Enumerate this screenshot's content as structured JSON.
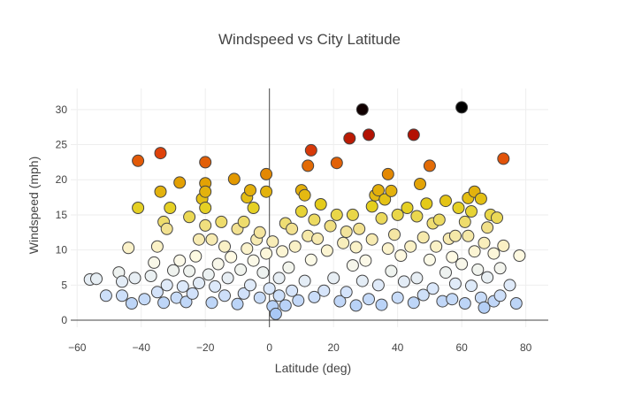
{
  "chart_data": {
    "type": "scatter",
    "title": "Windspeed vs City Latitude",
    "xlabel": "Latitude (deg)",
    "ylabel": "Windspeed (mph)",
    "xlim": [
      -62,
      87
    ],
    "ylim": [
      -1,
      33
    ],
    "xticks": [
      -60,
      -40,
      -20,
      0,
      20,
      40,
      60,
      80
    ],
    "yticks": [
      0,
      5,
      10,
      15,
      20,
      25,
      30
    ],
    "grid": true,
    "zeroline_x": true,
    "zeroline_y": true,
    "marker": {
      "edge_color": "#444444"
    },
    "colorscale": [
      [
        0.0,
        "#a9c8f5"
      ],
      [
        0.12,
        "#dbe8fb"
      ],
      [
        0.27,
        "#fffbe6"
      ],
      [
        0.4,
        "#f3e39a"
      ],
      [
        0.52,
        "#e4cf1c"
      ],
      [
        0.65,
        "#e39a00"
      ],
      [
        0.77,
        "#e2450b"
      ],
      [
        0.9,
        "#a30000"
      ],
      [
        1.0,
        "#000000"
      ]
    ],
    "points": [
      [
        -56,
        5.8
      ],
      [
        -54,
        5.9
      ],
      [
        -51,
        3.5
      ],
      [
        -47,
        6.8
      ],
      [
        -46,
        5.5
      ],
      [
        -46,
        3.5
      ],
      [
        -44,
        10.3
      ],
      [
        -43,
        2.4
      ],
      [
        -42,
        6.0
      ],
      [
        -41,
        16.0
      ],
      [
        -41,
        22.7
      ],
      [
        -39,
        3.0
      ],
      [
        -37,
        6.3
      ],
      [
        -36,
        8.2
      ],
      [
        -35,
        10.5
      ],
      [
        -35,
        4.0
      ],
      [
        -34,
        18.3
      ],
      [
        -34,
        23.8
      ],
      [
        -33,
        14.0
      ],
      [
        -33,
        2.5
      ],
      [
        -32,
        13.0
      ],
      [
        -32,
        5.0
      ],
      [
        -31,
        16.0
      ],
      [
        -30,
        7.1
      ],
      [
        -29,
        3.2
      ],
      [
        -28,
        19.6
      ],
      [
        -28,
        8.5
      ],
      [
        -27,
        4.8
      ],
      [
        -26,
        2.6
      ],
      [
        -25,
        7.0
      ],
      [
        -25,
        14.7
      ],
      [
        -24,
        3.8
      ],
      [
        -23,
        9.1
      ],
      [
        -22,
        11.5
      ],
      [
        -22,
        5.3
      ],
      [
        -21,
        17.3
      ],
      [
        -20,
        19.5
      ],
      [
        -20,
        18.3
      ],
      [
        -20,
        16.0
      ],
      [
        -20,
        22.5
      ],
      [
        -20,
        13.5
      ],
      [
        -19,
        6.5
      ],
      [
        -18,
        11.5
      ],
      [
        -18,
        2.5
      ],
      [
        -17,
        4.8
      ],
      [
        -16,
        8.0
      ],
      [
        -15,
        14.0
      ],
      [
        -14,
        10.5
      ],
      [
        -14,
        3.5
      ],
      [
        -13,
        6.0
      ],
      [
        -12,
        9.0
      ],
      [
        -11,
        20.1
      ],
      [
        -10,
        13.0
      ],
      [
        -10,
        2.3
      ],
      [
        -9,
        7.2
      ],
      [
        -8,
        14.0
      ],
      [
        -8,
        3.8
      ],
      [
        -7,
        17.5
      ],
      [
        -7,
        10.2
      ],
      [
        -6,
        18.5
      ],
      [
        -6,
        5.0
      ],
      [
        -5,
        16.0
      ],
      [
        -5,
        8.5
      ],
      [
        -4,
        11.5
      ],
      [
        -3,
        12.5
      ],
      [
        -3,
        3.2
      ],
      [
        -2,
        6.8
      ],
      [
        -1,
        18.3
      ],
      [
        -1,
        20.8
      ],
      [
        -1,
        9.5
      ],
      [
        0,
        4.5
      ],
      [
        1,
        11.2
      ],
      [
        1,
        2.0
      ],
      [
        2,
        0.9
      ],
      [
        3,
        6.0
      ],
      [
        3,
        3.5
      ],
      [
        4,
        9.8
      ],
      [
        5,
        13.8
      ],
      [
        5,
        2.1
      ],
      [
        6,
        7.5
      ],
      [
        7,
        13.0
      ],
      [
        7,
        4.2
      ],
      [
        8,
        10.5
      ],
      [
        9,
        2.8
      ],
      [
        10,
        15.5
      ],
      [
        10,
        18.5
      ],
      [
        11,
        17.8
      ],
      [
        11,
        5.6
      ],
      [
        12,
        22.0
      ],
      [
        12,
        12.0
      ],
      [
        13,
        24.2
      ],
      [
        13,
        8.6
      ],
      [
        14,
        14.3
      ],
      [
        14,
        3.3
      ],
      [
        15,
        11.6
      ],
      [
        16,
        16.5
      ],
      [
        17,
        4.2
      ],
      [
        18,
        9.9
      ],
      [
        19,
        13.4
      ],
      [
        20,
        6.0
      ],
      [
        21,
        15.0
      ],
      [
        21,
        22.4
      ],
      [
        22,
        2.7
      ],
      [
        23,
        11.0
      ],
      [
        24,
        12.6
      ],
      [
        24,
        4.0
      ],
      [
        25,
        25.9
      ],
      [
        26,
        15.0
      ],
      [
        26,
        7.8
      ],
      [
        27,
        10.4
      ],
      [
        27,
        2.1
      ],
      [
        28,
        13.0
      ],
      [
        29,
        30.0
      ],
      [
        29,
        5.6
      ],
      [
        30,
        8.5
      ],
      [
        31,
        26.4
      ],
      [
        31,
        3.0
      ],
      [
        32,
        16.2
      ],
      [
        32,
        11.5
      ],
      [
        33,
        17.8
      ],
      [
        34,
        18.5
      ],
      [
        34,
        5.0
      ],
      [
        35,
        14.5
      ],
      [
        35,
        2.2
      ],
      [
        36,
        17.2
      ],
      [
        37,
        20.8
      ],
      [
        37,
        10.2
      ],
      [
        38,
        18.4
      ],
      [
        38,
        7.0
      ],
      [
        39,
        12.2
      ],
      [
        40,
        3.2
      ],
      [
        40,
        15.0
      ],
      [
        41,
        9.2
      ],
      [
        42,
        5.5
      ],
      [
        43,
        16.0
      ],
      [
        44,
        10.5
      ],
      [
        45,
        2.5
      ],
      [
        45,
        26.4
      ],
      [
        46,
        14.8
      ],
      [
        46,
        6.0
      ],
      [
        47,
        19.4
      ],
      [
        48,
        11.8
      ],
      [
        48,
        3.6
      ],
      [
        49,
        16.6
      ],
      [
        50,
        22.0
      ],
      [
        50,
        8.6
      ],
      [
        51,
        13.8
      ],
      [
        51,
        4.5
      ],
      [
        52,
        10.5
      ],
      [
        53,
        14.3
      ],
      [
        54,
        2.7
      ],
      [
        55,
        17.0
      ],
      [
        55,
        6.8
      ],
      [
        56,
        11.6
      ],
      [
        57,
        9.0
      ],
      [
        57,
        3.0
      ],
      [
        58,
        12.0
      ],
      [
        58,
        5.2
      ],
      [
        59,
        16.0
      ],
      [
        60,
        30.3
      ],
      [
        60,
        8.0
      ],
      [
        61,
        14.0
      ],
      [
        61,
        2.4
      ],
      [
        62,
        17.4
      ],
      [
        62,
        12.0
      ],
      [
        63,
        15.5
      ],
      [
        63,
        4.9
      ],
      [
        64,
        18.3
      ],
      [
        64,
        9.8
      ],
      [
        65,
        7.2
      ],
      [
        66,
        17.3
      ],
      [
        66,
        3.2
      ],
      [
        67,
        11.0
      ],
      [
        67,
        1.8
      ],
      [
        68,
        13.2
      ],
      [
        68,
        6.1
      ],
      [
        69,
        15.0
      ],
      [
        70,
        9.5
      ],
      [
        70,
        2.7
      ],
      [
        71,
        14.6
      ],
      [
        72,
        7.4
      ],
      [
        72,
        3.5
      ],
      [
        73,
        10.6
      ],
      [
        73,
        23.0
      ],
      [
        75,
        5.0
      ],
      [
        77,
        2.4
      ],
      [
        78,
        9.2
      ]
    ]
  }
}
